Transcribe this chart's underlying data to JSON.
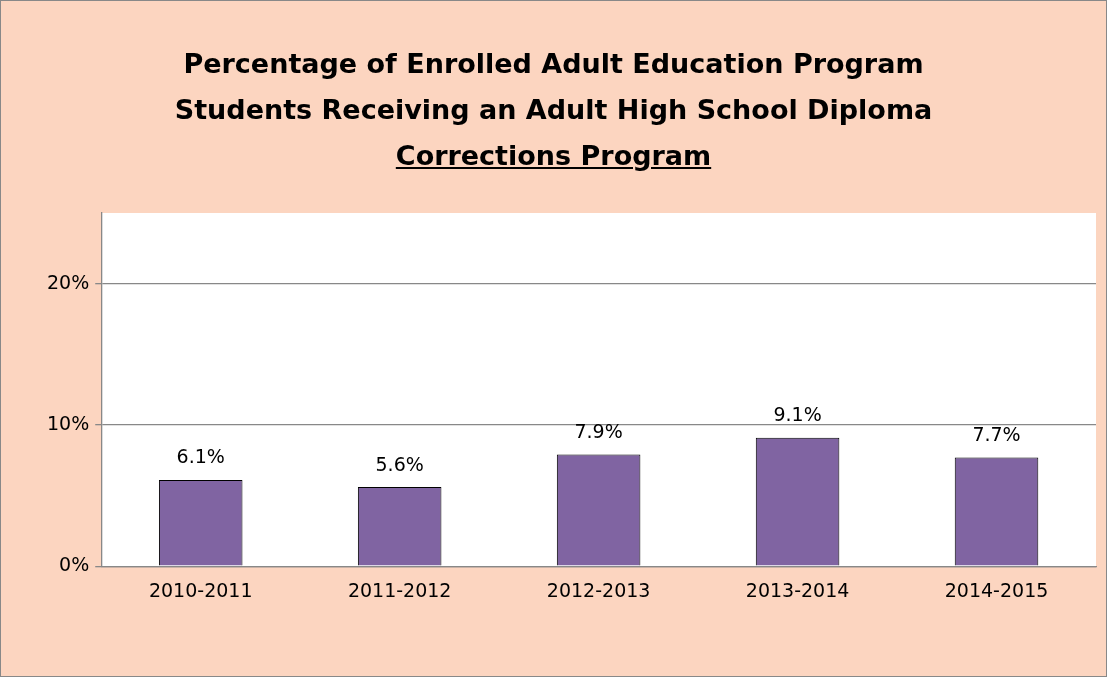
{
  "chart_data": {
    "type": "bar",
    "title": "Percentage of Enrolled Adult Education Program Students Receiving an Adult High School Diploma",
    "subtitle": "Corrections Program",
    "categories": [
      "2010-2011",
      "2011-2012",
      "2012-2013",
      "2013-2014",
      "2014-2015"
    ],
    "values": [
      6.1,
      5.6,
      7.9,
      9.1,
      7.7
    ],
    "value_labels": [
      "6.1%",
      "5.6%",
      "7.9%",
      "9.1%",
      "7.7%"
    ],
    "color": "#8064a2",
    "ylim": [
      0,
      25
    ],
    "yticks": [
      {
        "value": 0,
        "label": "0%"
      },
      {
        "value": 10,
        "label": "10%"
      },
      {
        "value": 20,
        "label": "20%"
      }
    ],
    "grid": "y",
    "legend": false
  }
}
